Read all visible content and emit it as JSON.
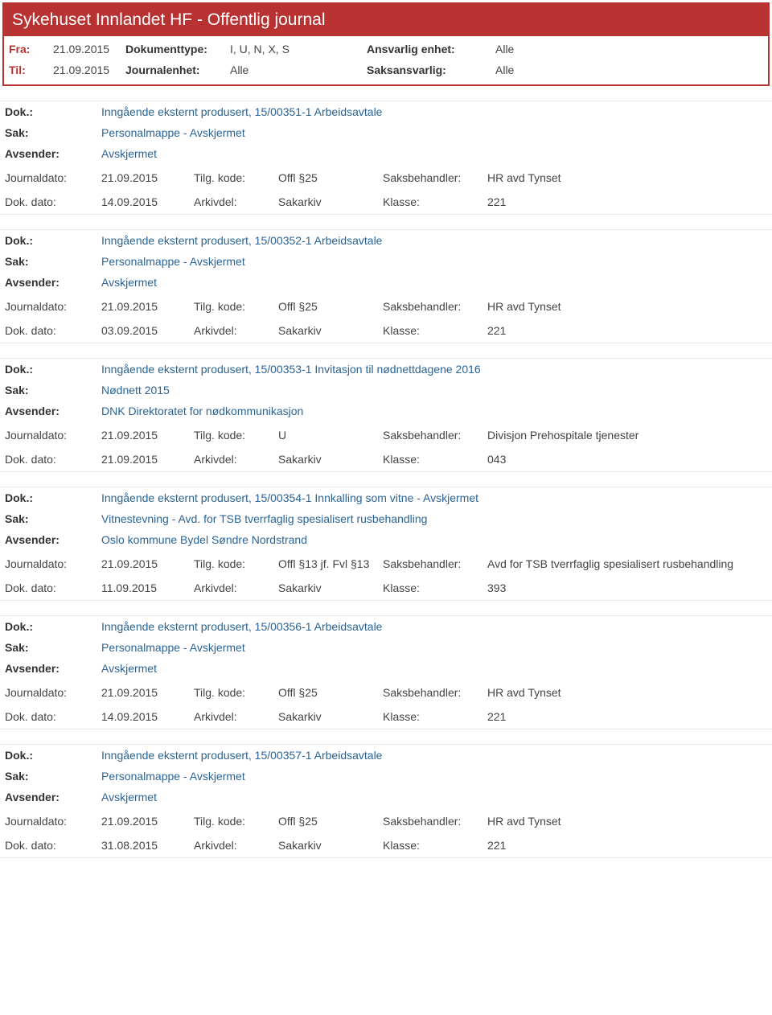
{
  "header": {
    "title": "Sykehuset Innlandet HF - Offentlig journal",
    "fra_label": "Fra:",
    "fra_value": "21.09.2015",
    "til_label": "Til:",
    "til_value": "21.09.2015",
    "dokumenttype_label": "Dokumenttype:",
    "dokumenttype_value": "I, U, N, X, S",
    "journalenhet_label": "Journalenhet:",
    "journalenhet_value": "Alle",
    "ansvarlig_label": "Ansvarlig enhet:",
    "ansvarlig_value": "Alle",
    "saksansvarlig_label": "Saksansvarlig:",
    "saksansvarlig_value": "Alle"
  },
  "labels": {
    "dok": "Dok.:",
    "sak": "Sak:",
    "avsender": "Avsender:",
    "journaldato": "Journaldato:",
    "dokdato": "Dok. dato:",
    "tilgkode": "Tilg. kode:",
    "arkivdel": "Arkivdel:",
    "saksbehandler": "Saksbehandler:",
    "klasse": "Klasse:"
  },
  "entries": [
    {
      "dok": "Inngående eksternt produsert, 15/00351-1 Arbeidsavtale",
      "sak": "Personalmappe - Avskjermet",
      "avsender": "Avskjermet",
      "journaldato": "21.09.2015",
      "tilgkode": "Offl §25",
      "saksbehandler": "HR avd Tynset",
      "dokdato": "14.09.2015",
      "arkivdel": "Sakarkiv",
      "klasse": "221"
    },
    {
      "dok": "Inngående eksternt produsert, 15/00352-1 Arbeidsavtale",
      "sak": "Personalmappe - Avskjermet",
      "avsender": "Avskjermet",
      "journaldato": "21.09.2015",
      "tilgkode": "Offl §25",
      "saksbehandler": "HR avd Tynset",
      "dokdato": "03.09.2015",
      "arkivdel": "Sakarkiv",
      "klasse": "221"
    },
    {
      "dok": "Inngående eksternt produsert, 15/00353-1 Invitasjon til nødnettdagene 2016",
      "sak": "Nødnett 2015",
      "avsender": "DNK Direktoratet for nødkommunikasjon",
      "journaldato": "21.09.2015",
      "tilgkode": "U",
      "saksbehandler": "Divisjon Prehospitale tjenester",
      "dokdato": "21.09.2015",
      "arkivdel": "Sakarkiv",
      "klasse": "043"
    },
    {
      "dok": "Inngående eksternt produsert, 15/00354-1 Innkalling som vitne - Avskjermet",
      "sak": "Vitnestevning - Avd. for TSB tverrfaglig spesialisert rusbehandling",
      "avsender": "Oslo kommune Bydel Søndre Nordstrand",
      "journaldato": "21.09.2015",
      "tilgkode": "Offl §13 jf. Fvl §13",
      "saksbehandler": "Avd for TSB tverrfaglig spesialisert rusbehandling",
      "dokdato": "11.09.2015",
      "arkivdel": "Sakarkiv",
      "klasse": "393"
    },
    {
      "dok": "Inngående eksternt produsert, 15/00356-1 Arbeidsavtale",
      "sak": "Personalmappe - Avskjermet",
      "avsender": "Avskjermet",
      "journaldato": "21.09.2015",
      "tilgkode": "Offl §25",
      "saksbehandler": "HR avd Tynset",
      "dokdato": "14.09.2015",
      "arkivdel": "Sakarkiv",
      "klasse": "221"
    },
    {
      "dok": "Inngående eksternt produsert, 15/00357-1 Arbeidsavtale",
      "sak": "Personalmappe - Avskjermet",
      "avsender": "Avskjermet",
      "journaldato": "21.09.2015",
      "tilgkode": "Offl §25",
      "saksbehandler": "HR avd Tynset",
      "dokdato": "31.08.2015",
      "arkivdel": "Sakarkiv",
      "klasse": "221"
    }
  ]
}
